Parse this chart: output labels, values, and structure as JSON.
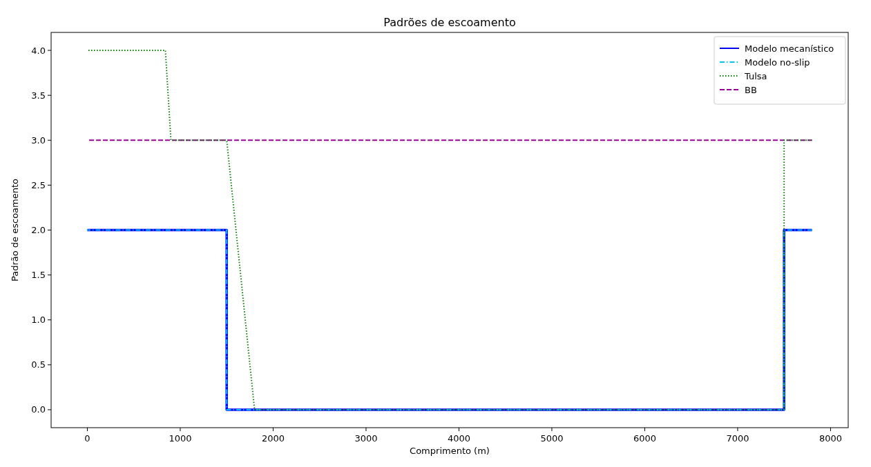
{
  "chart_data": {
    "type": "line",
    "title": "Padrões de escoamento",
    "xlabel": "Comprimento (m)",
    "ylabel": "Padrão de escoamento",
    "xlim": [
      -390,
      8190
    ],
    "xticks": [
      0,
      1000,
      2000,
      3000,
      4000,
      5000,
      6000,
      7000,
      8000
    ],
    "ylim": [
      -0.2,
      4.2
    ],
    "yticks": [
      {
        "value": 0,
        "label": "0.0"
      },
      {
        "value": 0.5,
        "label": "0.5"
      },
      {
        "value": 1,
        "label": "1.0"
      },
      {
        "value": 1.5,
        "label": "1.5"
      },
      {
        "value": 2,
        "label": "2.0"
      },
      {
        "value": 2.5,
        "label": "2.5"
      },
      {
        "value": 3,
        "label": "3.0"
      },
      {
        "value": 3.5,
        "label": "3.5"
      },
      {
        "value": 4,
        "label": "4.0"
      }
    ],
    "grid": false,
    "legend": "top right",
    "marker": "none",
    "series": [
      {
        "name": "Modelo mecanístico",
        "color": "#0000ff",
        "line_style": "solid",
        "x": [
          0,
          1500,
          1500,
          7500,
          7500,
          7800
        ],
        "values": [
          2,
          2,
          0,
          0,
          2,
          2
        ]
      },
      {
        "name": "Modelo no-slip",
        "color": "#00bfff",
        "line_style": "dashdot",
        "x": [
          0,
          1500,
          1500,
          7500,
          7500,
          7800
        ],
        "values": [
          2,
          2,
          0,
          0,
          2,
          2
        ]
      },
      {
        "name": "Tulsa",
        "color": "#008000",
        "line_style": "dotted",
        "x": [
          0,
          840,
          900,
          1500,
          1800,
          7500,
          7500,
          7800
        ],
        "values": [
          4,
          4,
          3,
          3,
          0,
          0,
          3,
          3
        ]
      },
      {
        "name": "BB",
        "color": "#990099",
        "line_style": "dashed",
        "x": [
          0,
          7800
        ],
        "values": [
          3,
          3
        ]
      }
    ]
  }
}
